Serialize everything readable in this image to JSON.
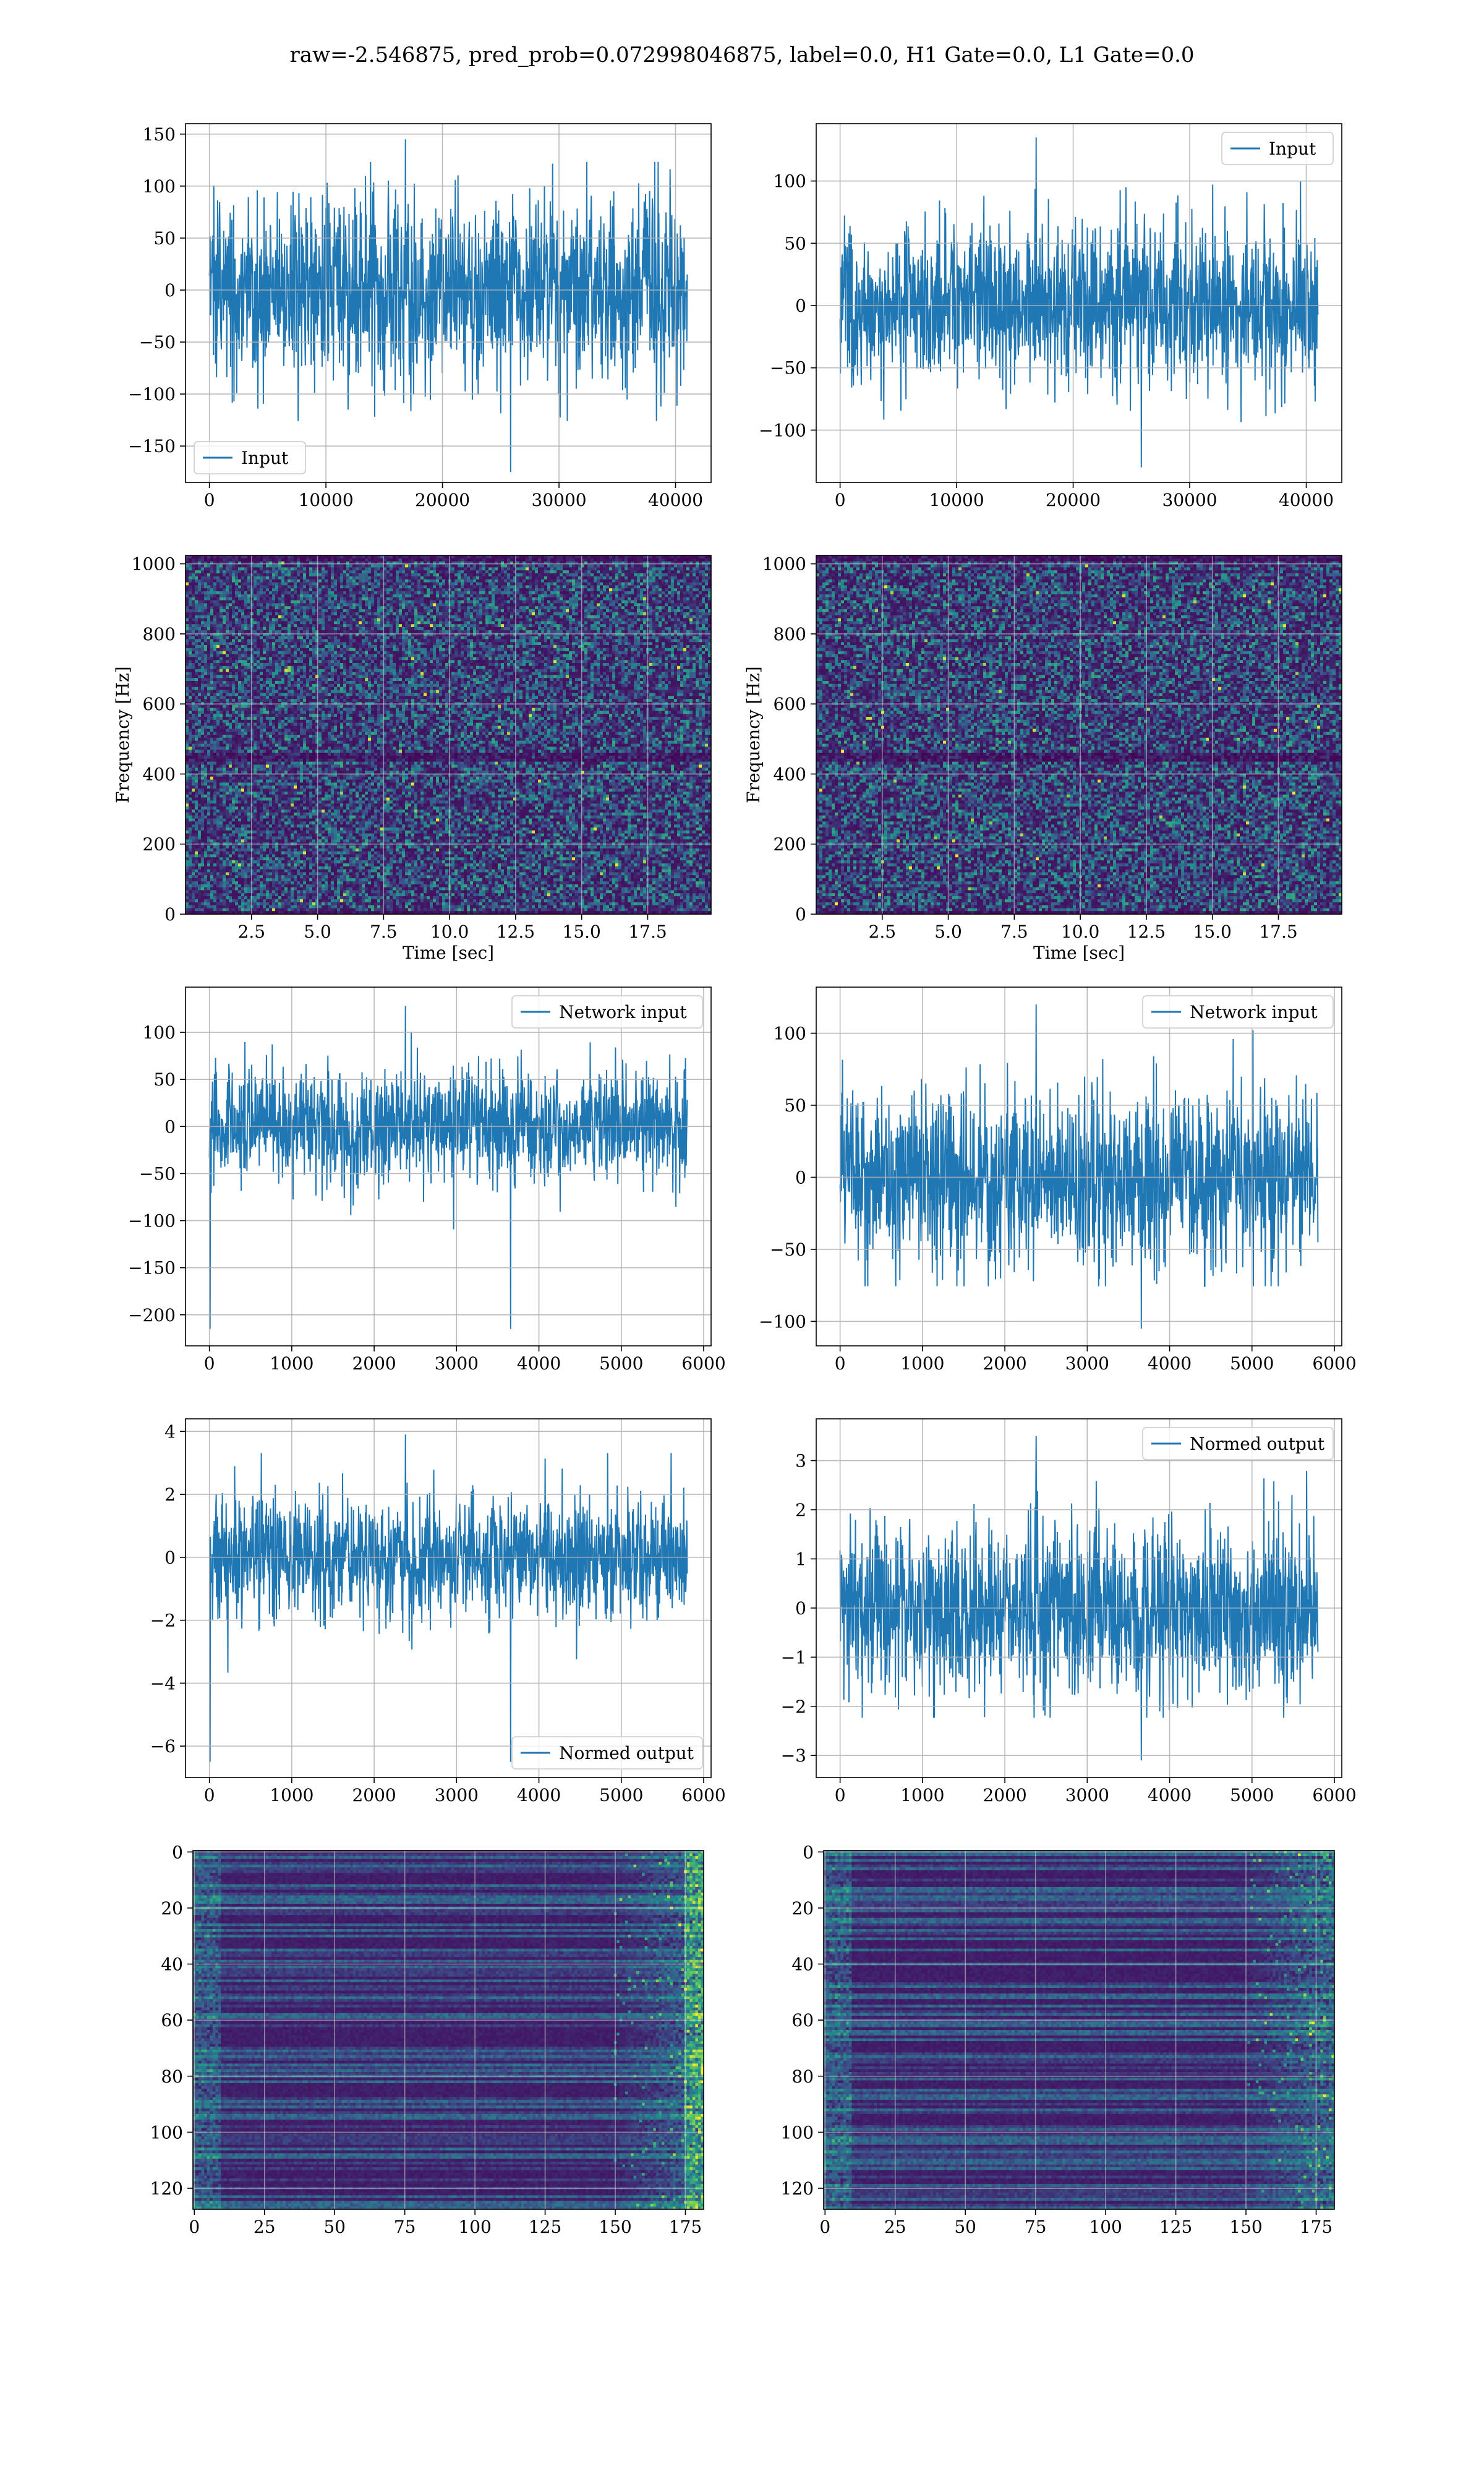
{
  "figure": {
    "suptitle": "raw=-2.546875, pred_prob=0.072998046875, label=0.0, H1 Gate=0.0, L1 Gate=0.0",
    "colors": {
      "line": "#1f77b4",
      "grid": "#b0b0b0",
      "background": "#ffffff"
    }
  },
  "chart_data": [
    {
      "id": "p00",
      "type": "line",
      "series": [
        {
          "name": "Input",
          "n": 41000,
          "center": 0,
          "amplitude": 60,
          "peak_max": 145,
          "peak_min": -175
        }
      ],
      "xlim": [
        -2050,
        43050
      ],
      "ylim": [
        -185,
        160
      ],
      "xticks": [
        0,
        10000,
        20000,
        30000,
        40000
      ],
      "yticks": [
        -150,
        -100,
        -50,
        0,
        50,
        100,
        150
      ],
      "xtick_labels": [
        "0",
        "10000",
        "20000",
        "30000",
        "40000"
      ],
      "ytick_labels": [
        "−150",
        "−100",
        "−50",
        "0",
        "50",
        "100",
        "150"
      ],
      "xlabel": "",
      "ylabel": "",
      "legend": "lower-left",
      "grid": true
    },
    {
      "id": "p01",
      "type": "line",
      "series": [
        {
          "name": "Input",
          "n": 41000,
          "center": 0,
          "amplitude": 45,
          "peak_max": 135,
          "peak_min": -130
        }
      ],
      "xlim": [
        -2050,
        43050
      ],
      "ylim": [
        -142,
        146
      ],
      "xticks": [
        0,
        10000,
        20000,
        30000,
        40000
      ],
      "yticks": [
        -100,
        -50,
        0,
        50,
        100
      ],
      "xtick_labels": [
        "0",
        "10000",
        "20000",
        "30000",
        "40000"
      ],
      "ytick_labels": [
        "−100",
        "−50",
        "0",
        "50",
        "100"
      ],
      "xlabel": "",
      "ylabel": "",
      "legend": "upper-right",
      "grid": true
    },
    {
      "id": "p10",
      "type": "heatmap",
      "colormap": "viridis",
      "xlim": [
        0,
        19.9
      ],
      "ylim": [
        0,
        1024
      ],
      "xticks": [
        2.5,
        5.0,
        7.5,
        10.0,
        12.5,
        15.0,
        17.5
      ],
      "yticks": [
        0,
        200,
        400,
        600,
        800,
        1000
      ],
      "xtick_labels": [
        "2.5",
        "5.0",
        "7.5",
        "10.0",
        "12.5",
        "15.0",
        "17.5"
      ],
      "ytick_labels": [
        "0",
        "200",
        "400",
        "600",
        "800",
        "1000"
      ],
      "xlabel": "Time [sec]",
      "ylabel": "Frequency [Hz]",
      "grid": true
    },
    {
      "id": "p11",
      "type": "heatmap",
      "colormap": "viridis",
      "xlim": [
        0,
        19.9
      ],
      "ylim": [
        0,
        1024
      ],
      "xticks": [
        2.5,
        5.0,
        7.5,
        10.0,
        12.5,
        15.0,
        17.5
      ],
      "yticks": [
        0,
        200,
        400,
        600,
        800,
        1000
      ],
      "xtick_labels": [
        "2.5",
        "5.0",
        "7.5",
        "10.0",
        "12.5",
        "15.0",
        "17.5"
      ],
      "ytick_labels": [
        "0",
        "200",
        "400",
        "600",
        "800",
        "1000"
      ],
      "xlabel": "Time [sec]",
      "ylabel": "Frequency [Hz]",
      "grid": true
    },
    {
      "id": "p20",
      "type": "line",
      "series": [
        {
          "name": "Network input",
          "n": 5800,
          "center": 0,
          "amplitude": 42,
          "peak_max": 128,
          "peak_min": -215
        }
      ],
      "xlim": [
        -290,
        6090
      ],
      "ylim": [
        -233,
        148
      ],
      "xticks": [
        0,
        1000,
        2000,
        3000,
        4000,
        5000,
        6000
      ],
      "yticks": [
        -200,
        -150,
        -100,
        -50,
        0,
        50,
        100
      ],
      "xtick_labels": [
        "0",
        "1000",
        "2000",
        "3000",
        "4000",
        "5000",
        "6000"
      ],
      "ytick_labels": [
        "−200",
        "−150",
        "−100",
        "−50",
        "0",
        "50",
        "100"
      ],
      "xlabel": "",
      "ylabel": "",
      "legend": "upper-right",
      "grid": true
    },
    {
      "id": "p21",
      "type": "line",
      "series": [
        {
          "name": "Network input",
          "n": 5800,
          "center": 0,
          "amplitude": 42,
          "peak_max": 120,
          "peak_min": -105
        }
      ],
      "xlim": [
        -290,
        6090
      ],
      "ylim": [
        -117,
        132
      ],
      "xticks": [
        0,
        1000,
        2000,
        3000,
        4000,
        5000,
        6000
      ],
      "yticks": [
        -100,
        -50,
        0,
        50,
        100
      ],
      "xtick_labels": [
        "0",
        "1000",
        "2000",
        "3000",
        "4000",
        "5000",
        "6000"
      ],
      "ytick_labels": [
        "−100",
        "−50",
        "0",
        "50",
        "100"
      ],
      "xlabel": "",
      "ylabel": "",
      "legend": "upper-right",
      "grid": true
    },
    {
      "id": "p30",
      "type": "line",
      "series": [
        {
          "name": "Normed output",
          "n": 5800,
          "center": 0,
          "amplitude": 1.3,
          "peak_max": 3.9,
          "peak_min": -6.5
        }
      ],
      "xlim": [
        -290,
        6090
      ],
      "ylim": [
        -7.0,
        4.4
      ],
      "xticks": [
        0,
        1000,
        2000,
        3000,
        4000,
        5000,
        6000
      ],
      "yticks": [
        -6,
        -4,
        -2,
        0,
        2,
        4
      ],
      "xtick_labels": [
        "0",
        "1000",
        "2000",
        "3000",
        "4000",
        "5000",
        "6000"
      ],
      "ytick_labels": [
        "−6",
        "−4",
        "−2",
        "0",
        "2",
        "4"
      ],
      "xlabel": "",
      "ylabel": "",
      "legend": "lower-right",
      "grid": true
    },
    {
      "id": "p31",
      "type": "line",
      "series": [
        {
          "name": "Normed output",
          "n": 5800,
          "center": 0,
          "amplitude": 1.2,
          "peak_max": 3.5,
          "peak_min": -3.1
        }
      ],
      "xlim": [
        -290,
        6090
      ],
      "ylim": [
        -3.45,
        3.85
      ],
      "xticks": [
        0,
        1000,
        2000,
        3000,
        4000,
        5000,
        6000
      ],
      "yticks": [
        -3,
        -2,
        -1,
        0,
        1,
        2,
        3
      ],
      "xtick_labels": [
        "0",
        "1000",
        "2000",
        "3000",
        "4000",
        "5000",
        "6000"
      ],
      "ytick_labels": [
        "−3",
        "−2",
        "−1",
        "0",
        "1",
        "2",
        "3"
      ],
      "xlabel": "",
      "ylabel": "",
      "legend": "upper-right",
      "grid": true
    },
    {
      "id": "p40",
      "type": "heatmap",
      "colormap": "viridis",
      "rows": 128,
      "cols": 182,
      "xlim": [
        -0.5,
        181.5
      ],
      "ylim": [
        127.5,
        -0.5
      ],
      "xticks": [
        0,
        25,
        50,
        75,
        100,
        125,
        150,
        175
      ],
      "yticks": [
        0,
        20,
        40,
        60,
        80,
        100,
        120
      ],
      "xtick_labels": [
        "0",
        "25",
        "50",
        "75",
        "100",
        "125",
        "150",
        "175"
      ],
      "ytick_labels": [
        "0",
        "20",
        "40",
        "60",
        "80",
        "100",
        "120"
      ],
      "xlabel": "",
      "ylabel": "",
      "grid": true
    },
    {
      "id": "p41",
      "type": "heatmap",
      "colormap": "viridis",
      "rows": 128,
      "cols": 182,
      "xlim": [
        -0.5,
        181.5
      ],
      "ylim": [
        127.5,
        -0.5
      ],
      "xticks": [
        0,
        25,
        50,
        75,
        100,
        125,
        150,
        175
      ],
      "yticks": [
        0,
        20,
        40,
        60,
        80,
        100,
        120
      ],
      "xtick_labels": [
        "0",
        "25",
        "50",
        "75",
        "100",
        "125",
        "150",
        "175"
      ],
      "ytick_labels": [
        "0",
        "20",
        "40",
        "60",
        "80",
        "100",
        "120"
      ],
      "xlabel": "",
      "ylabel": "",
      "grid": true
    }
  ]
}
